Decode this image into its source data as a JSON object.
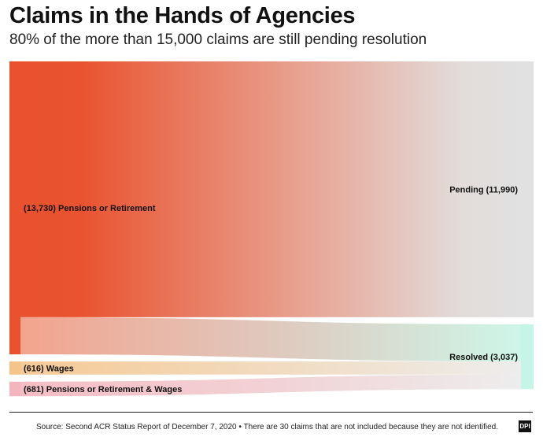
{
  "header": {
    "title": "Claims in the Hands of Agencies",
    "subtitle": "80% of the more than 15,000 claims are still pending resolution"
  },
  "footer": {
    "source": "Source: Second ACR Status Report of December 7, 2020 • There are 30 claims that are not included because they are not identified.",
    "logo_text": "DPI"
  },
  "chart_data": {
    "type": "sankey",
    "sources": [
      {
        "name": "Pensions or Retirement",
        "value": 13730,
        "label": "(13,730) Pensions or Retirement",
        "color": "#e9512f"
      },
      {
        "name": "Wages",
        "value": 616,
        "label": "(616) Wages",
        "color": "#f5c48a"
      },
      {
        "name": "Pensions or Retirement & Wages",
        "value": 681,
        "label": "(681) Pensions or Retirement & Wages",
        "color": "#f4b6be"
      }
    ],
    "targets": [
      {
        "name": "Pending",
        "value": 11990,
        "label": "Pending (11,990)",
        "color": "#e1e1e1"
      },
      {
        "name": "Resolved",
        "value": 3037,
        "label": "Resolved (3,037)",
        "color": "#c4f5e6"
      }
    ],
    "flows": [
      {
        "source": "Pensions or Retirement",
        "target": "Pending",
        "value": 11990
      },
      {
        "source": "Pensions or Retirement",
        "target": "Resolved",
        "value": 1740
      },
      {
        "source": "Wages",
        "target": "Pending",
        "value": 0
      },
      {
        "source": "Wages",
        "target": "Resolved",
        "value": 616
      },
      {
        "source": "Pensions or Retirement & Wages",
        "target": "Pending",
        "value": 0
      },
      {
        "source": "Pensions or Retirement & Wages",
        "target": "Resolved",
        "value": 681
      }
    ]
  }
}
